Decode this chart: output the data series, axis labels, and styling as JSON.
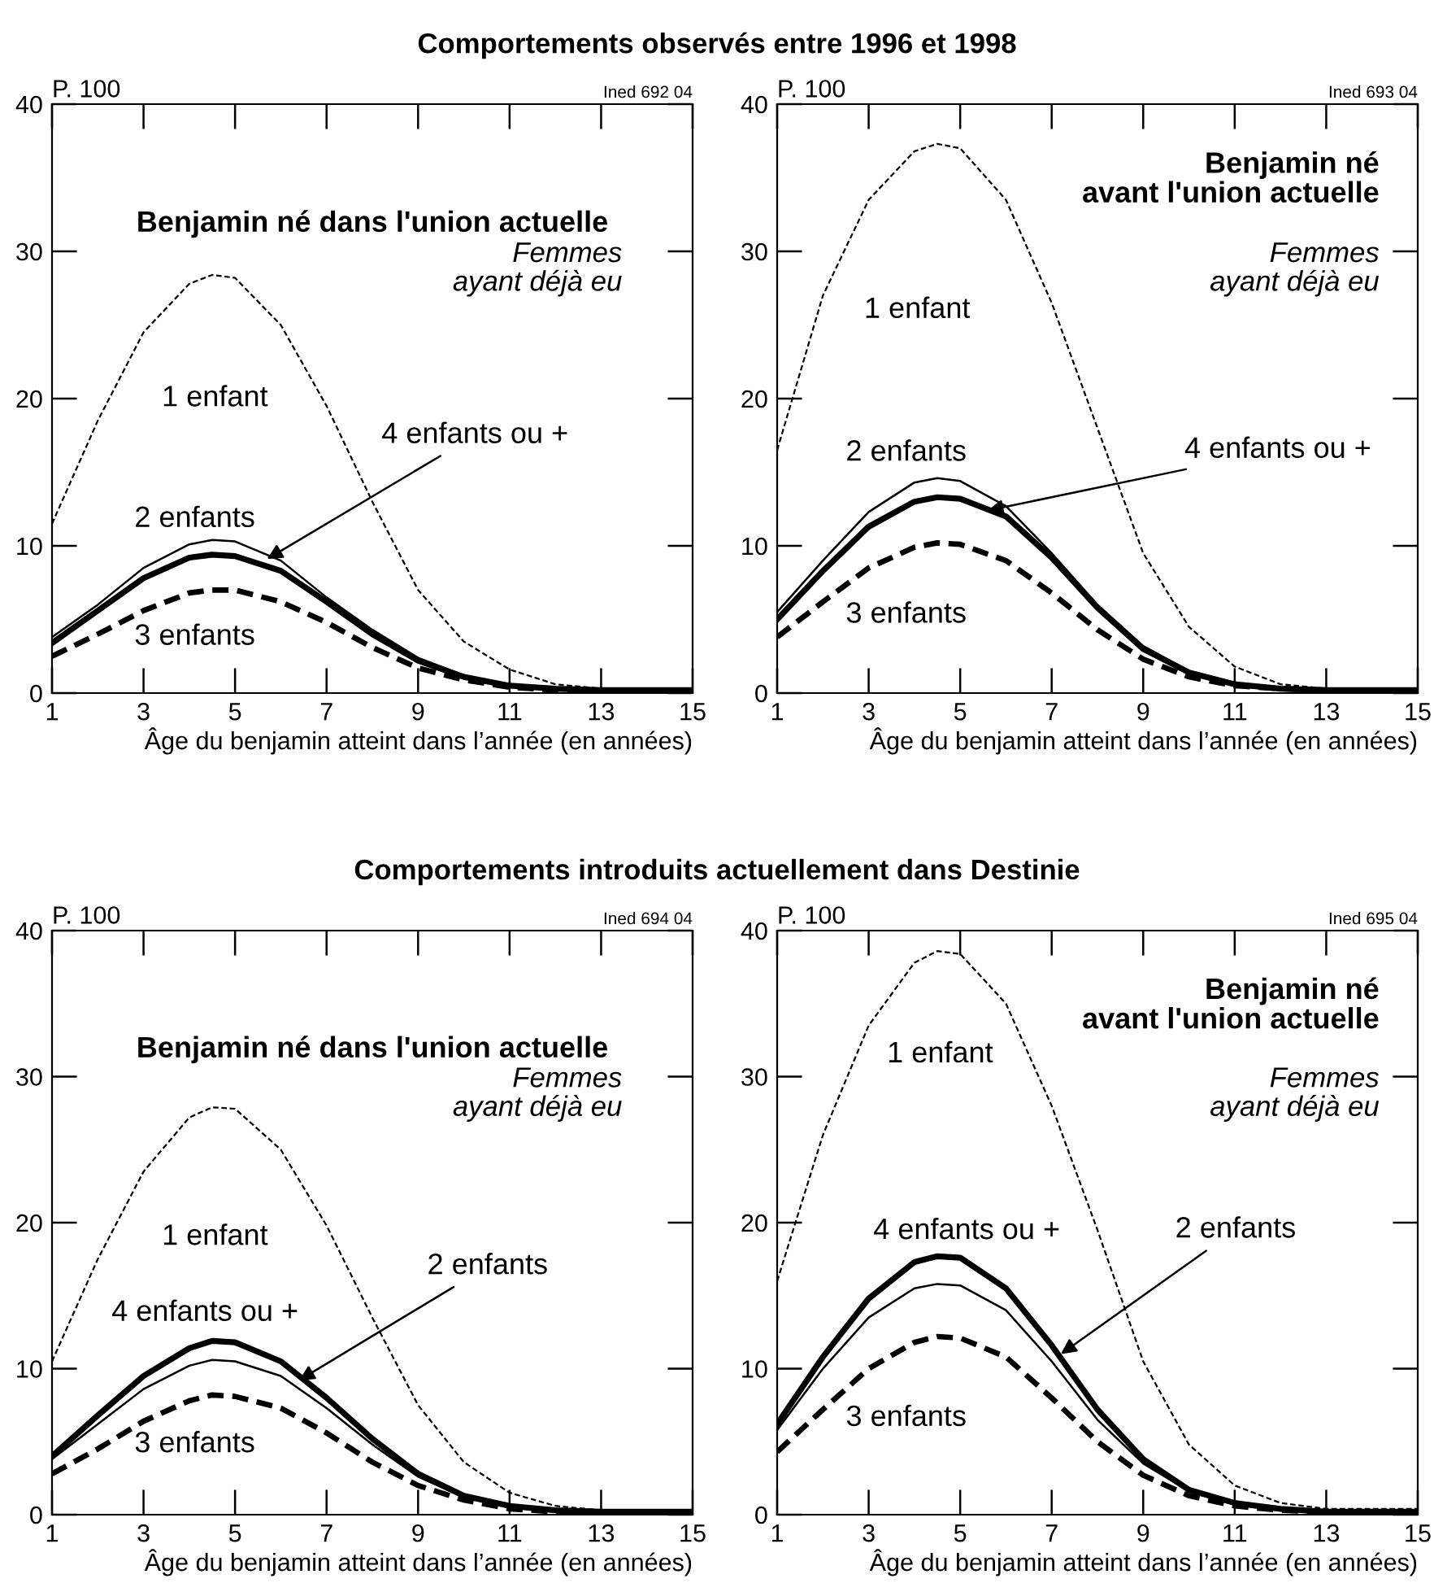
{
  "chart_data": [
    {
      "type": "line",
      "title": "Comportements observés entre 1996 et 1998",
      "xlabel": "Âge du benjamin atteint dans l’année (en années)",
      "ylabel": "P. 100",
      "annotations": [
        "Benjamin né dans l'union actuelle",
        "Femmes\nayant déjà eu",
        "Ined 692 04"
      ],
      "x": [
        1,
        2,
        3,
        4,
        4.5,
        5,
        6,
        7,
        8,
        9,
        10,
        11,
        12,
        13,
        14,
        15
      ],
      "xlim": [
        1,
        15
      ],
      "xticks": [
        1,
        3,
        5,
        7,
        9,
        11,
        13,
        15
      ],
      "ylim": [
        0,
        40
      ],
      "yticks": [
        0,
        10,
        20,
        30,
        40
      ],
      "grid": false,
      "legend": false,
      "series": [
        {
          "name": "1 enfant",
          "color": "#000000",
          "line_style": "dashed",
          "values": [
            11.5,
            18.5,
            24.5,
            27.8,
            28.4,
            28.2,
            25,
            19.5,
            13,
            7,
            3.5,
            1.6,
            0.6,
            0.3,
            0.2,
            0.2
          ]
        },
        {
          "name": "2 enfants",
          "color": "#000000",
          "line_style": "solid",
          "values": [
            3.8,
            6,
            8.5,
            10.1,
            10.4,
            10.3,
            9,
            6.5,
            4.3,
            2.4,
            1.2,
            0.5,
            0.3,
            0.2,
            0.2,
            0.2
          ]
        },
        {
          "name": "3 enfants",
          "color": "#000000",
          "line_style": "dashed",
          "values": [
            2.5,
            4,
            5.6,
            6.8,
            7,
            7,
            6.2,
            4.8,
            3.1,
            1.7,
            0.9,
            0.4,
            0.2,
            0.1,
            0.1,
            0.1
          ]
        },
        {
          "name": "4 enfants ou +",
          "color": "#000000",
          "line_style": "solid",
          "values": [
            3.4,
            5.6,
            7.8,
            9.2,
            9.4,
            9.3,
            8.3,
            6.2,
            4,
            2.2,
            1.1,
            0.5,
            0.3,
            0.2,
            0.2,
            0.2
          ]
        }
      ]
    },
    {
      "type": "line",
      "xlabel": "Âge du benjamin atteint dans l’année (en années)",
      "ylabel": "P. 100",
      "annotations": [
        "Benjamin né\navant l'union actuelle",
        "Femmes\nayant déjà eu",
        "Ined 693 04"
      ],
      "x": [
        1,
        2,
        3,
        4,
        4.5,
        5,
        6,
        7,
        8,
        9,
        10,
        11,
        12,
        13,
        14,
        15
      ],
      "xlim": [
        1,
        15
      ],
      "xticks": [
        1,
        3,
        5,
        7,
        9,
        11,
        13,
        15
      ],
      "ylim": [
        0,
        40
      ],
      "yticks": [
        0,
        10,
        20,
        30,
        40
      ],
      "grid": false,
      "legend": false,
      "series": [
        {
          "name": "1 enfant",
          "color": "#000000",
          "line_style": "dashed",
          "values": [
            16.5,
            27,
            33.5,
            36.8,
            37.3,
            37,
            33.5,
            26.5,
            18,
            9.5,
            4.5,
            1.8,
            0.6,
            0.3,
            0.3,
            0.3
          ]
        },
        {
          "name": "2 enfants",
          "color": "#000000",
          "line_style": "solid",
          "values": [
            5.5,
            9,
            12.3,
            14.3,
            14.6,
            14.4,
            12.7,
            9.5,
            6,
            3.2,
            1.5,
            0.7,
            0.3,
            0.2,
            0.2,
            0.2
          ]
        },
        {
          "name": "3 enfants",
          "color": "#000000",
          "line_style": "dashed",
          "values": [
            3.8,
            6.2,
            8.5,
            9.9,
            10.2,
            10.1,
            9,
            6.8,
            4.3,
            2.3,
            1.1,
            0.5,
            0.3,
            0.2,
            0.2,
            0.2
          ]
        },
        {
          "name": "4 enfants ou +",
          "color": "#000000",
          "line_style": "solid",
          "values": [
            5,
            8.3,
            11.3,
            13,
            13.3,
            13.2,
            12,
            9.2,
            5.8,
            3,
            1.4,
            0.6,
            0.3,
            0.2,
            0.2,
            0.2
          ]
        }
      ]
    },
    {
      "type": "line",
      "title": "Comportements introduits actuellement dans Destinie",
      "xlabel": "Âge du benjamin atteint dans l’année (en années)",
      "ylabel": "P. 100",
      "annotations": [
        "Benjamin né dans l'union actuelle",
        "Femmes\nayant déjà eu",
        "Ined 694 04"
      ],
      "x": [
        1,
        2,
        3,
        4,
        4.5,
        5,
        6,
        7,
        8,
        9,
        10,
        11,
        12,
        13,
        14,
        15
      ],
      "xlim": [
        1,
        15
      ],
      "xticks": [
        1,
        3,
        5,
        7,
        9,
        11,
        13,
        15
      ],
      "ylim": [
        0,
        40
      ],
      "yticks": [
        0,
        10,
        20,
        30,
        40
      ],
      "grid": false,
      "legend": false,
      "series": [
        {
          "name": "1 enfant",
          "color": "#000000",
          "line_style": "dashed",
          "values": [
            10.5,
            17.5,
            23.5,
            27.2,
            27.9,
            27.8,
            25,
            19.8,
            13.5,
            7.5,
            3.6,
            1.5,
            0.6,
            0.3,
            0.3,
            0.3
          ]
        },
        {
          "name": "2 enfants",
          "color": "#000000",
          "line_style": "solid",
          "values": [
            3.8,
            6.2,
            8.6,
            10.2,
            10.6,
            10.5,
            9.5,
            7.3,
            4.8,
            2.6,
            1.2,
            0.5,
            0.2,
            0.1,
            0.1,
            0.1
          ]
        },
        {
          "name": "3 enfants",
          "color": "#000000",
          "line_style": "dashed",
          "values": [
            2.8,
            4.5,
            6.4,
            7.8,
            8.2,
            8.1,
            7.3,
            5.6,
            3.6,
            2,
            1,
            0.4,
            0.2,
            0.1,
            0.1,
            0.1
          ]
        },
        {
          "name": "4 enfants ou +",
          "color": "#000000",
          "line_style": "solid",
          "values": [
            4,
            6.8,
            9.5,
            11.4,
            11.9,
            11.8,
            10.5,
            8,
            5.2,
            2.8,
            1.3,
            0.6,
            0.3,
            0.2,
            0.2,
            0.2
          ]
        }
      ]
    },
    {
      "type": "line",
      "xlabel": "Âge du benjamin atteint dans l’année (en années)",
      "ylabel": "P. 100",
      "annotations": [
        "Benjamin né\navant l'union actuelle",
        "Femmes\nayant déjà eu",
        "Ined 695 04"
      ],
      "x": [
        1,
        2,
        3,
        4,
        4.5,
        5,
        6,
        7,
        8,
        9,
        10,
        11,
        12,
        13,
        14,
        15
      ],
      "xlim": [
        1,
        15
      ],
      "xticks": [
        1,
        3,
        5,
        7,
        9,
        11,
        13,
        15
      ],
      "ylim": [
        0,
        40
      ],
      "yticks": [
        0,
        10,
        20,
        30,
        40
      ],
      "grid": false,
      "legend": false,
      "series": [
        {
          "name": "1 enfant",
          "color": "#000000",
          "line_style": "dashed",
          "values": [
            16,
            26,
            33.5,
            37.8,
            38.6,
            38.4,
            35,
            28,
            19.5,
            10.5,
            4.8,
            2,
            0.8,
            0.4,
            0.4,
            0.4
          ]
        },
        {
          "name": "2 enfants",
          "color": "#000000",
          "line_style": "solid",
          "values": [
            5.8,
            10,
            13.5,
            15.5,
            15.8,
            15.7,
            14,
            10.5,
            6.5,
            3.5,
            1.6,
            0.7,
            0.3,
            0.2,
            0.2,
            0.2
          ]
        },
        {
          "name": "3 enfants",
          "color": "#000000",
          "line_style": "dashed",
          "values": [
            4.3,
            7.2,
            10,
            11.8,
            12.2,
            12.1,
            10.8,
            8,
            5,
            2.7,
            1.3,
            0.6,
            0.3,
            0.2,
            0.2,
            0.2
          ]
        },
        {
          "name": "4 enfants ou +",
          "color": "#000000",
          "line_style": "solid",
          "values": [
            6.2,
            10.8,
            14.8,
            17.3,
            17.7,
            17.6,
            15.5,
            11.6,
            7.2,
            3.8,
            1.7,
            0.8,
            0.4,
            0.2,
            0.2,
            0.2
          ]
        }
      ]
    }
  ]
}
